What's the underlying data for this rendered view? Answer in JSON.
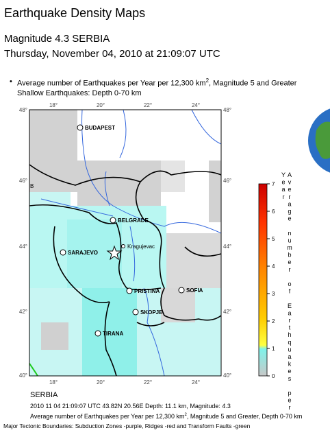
{
  "header": {
    "title": "Earthquake Density Maps",
    "event": "Magnitude 4.3 SERBIA",
    "datetime": "Thursday, November 04, 2010 at 21:09:07 UTC"
  },
  "legend": {
    "bullet": "•",
    "line1_pre": "Average number of Earthquakes per Year per 12,300 km",
    "line1_sup": "2",
    "line1_post": ", Magnitude 5 and Greater",
    "line2": "Shallow Earthquakes: Depth 0-70 km"
  },
  "map": {
    "lon_labels": [
      "18°",
      "20°",
      "22°",
      "24°"
    ],
    "lat_labels": [
      "48°",
      "46°",
      "44°",
      "42°",
      "40°"
    ],
    "cities": [
      "BUDAPEST",
      "BELGRADE",
      "SARAJEVO",
      "Kragujevac",
      "PRISTINA",
      "SOFIA",
      "SKOPJE",
      "TIRANA"
    ],
    "edge_label": "B"
  },
  "colorbar": {
    "ticks": [
      "0",
      "1",
      "2",
      "3",
      "4",
      "5",
      "6",
      "7"
    ],
    "title": "Average number of Earthquakes per Year"
  },
  "footer": {
    "region": "SERBIA",
    "event_line": "2010 11 04 21:09:07 UTC 43.82N 20.56E Depth: 11.1 km, Magnitude: 4.3",
    "caption_pre": "Average number of Earthquakes per Year per 12,300 km",
    "caption_sup": "2",
    "caption_post": ", Magnitude 5 and Greater, Depth 0-70 km",
    "tectonic": "Major Tectonic Boundaries: Subduction Zones -purple, Ridges -red and Transform Faults -green"
  }
}
